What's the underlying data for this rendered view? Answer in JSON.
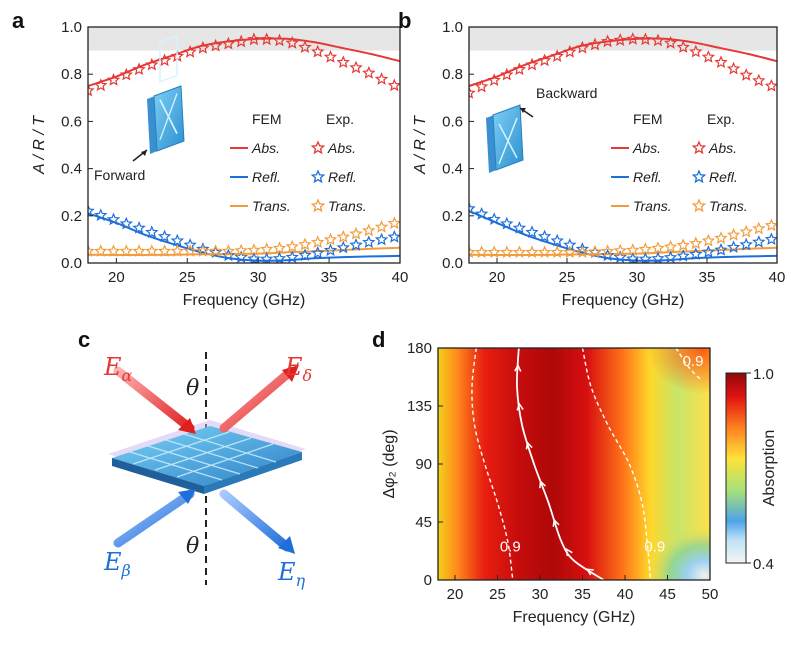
{
  "figure": {
    "panels": {
      "a": "a",
      "b": "b",
      "c": "c",
      "d": "d"
    }
  },
  "colors": {
    "abs": "#e53935",
    "refl": "#1e6fd9",
    "trans": "#f39c3c",
    "shade": "#e6e6e6"
  },
  "chart_data": [
    {
      "id": "a",
      "type": "line",
      "xlabel": "Frequency (GHz)",
      "ylabel": "A / R / T",
      "xlim": [
        18,
        40
      ],
      "ylim": [
        0,
        1.0
      ],
      "xticks": [
        20,
        25,
        30,
        35,
        40
      ],
      "yticks": [
        0.0,
        0.2,
        0.4,
        0.6,
        0.8,
        1.0
      ],
      "yticklabels": [
        "0.0",
        "0.2",
        "0.4",
        "0.6",
        "0.8",
        "1.0"
      ],
      "shaded_band": [
        0.9,
        1.0
      ],
      "inset_label": "Forward",
      "legend": {
        "fem_title": "FEM",
        "exp_title": "Exp.",
        "entries": [
          "Abs.",
          "Refl.",
          "Trans."
        ]
      },
      "x": [
        18,
        20,
        22,
        24,
        26,
        28,
        30,
        32,
        34,
        36,
        38,
        40
      ],
      "series": [
        {
          "name": "Abs.",
          "kind": "FEM",
          "values": [
            0.75,
            0.79,
            0.84,
            0.88,
            0.92,
            0.94,
            0.95,
            0.95,
            0.935,
            0.91,
            0.885,
            0.855
          ]
        },
        {
          "name": "Refl.",
          "kind": "FEM",
          "values": [
            0.21,
            0.17,
            0.12,
            0.08,
            0.045,
            0.02,
            0.01,
            0.012,
            0.02,
            0.025,
            0.028,
            0.03
          ]
        },
        {
          "name": "Trans.",
          "kind": "FEM",
          "values": [
            0.035,
            0.034,
            0.034,
            0.035,
            0.037,
            0.038,
            0.04,
            0.045,
            0.05,
            0.055,
            0.06,
            0.065
          ]
        },
        {
          "name": "Abs.",
          "kind": "Exp.",
          "values": [
            0.73,
            0.78,
            0.83,
            0.87,
            0.91,
            0.93,
            0.95,
            0.94,
            0.9,
            0.85,
            0.8,
            0.74
          ]
        },
        {
          "name": "Refl.",
          "kind": "Exp.",
          "values": [
            0.22,
            0.18,
            0.14,
            0.1,
            0.06,
            0.03,
            0.015,
            0.02,
            0.04,
            0.065,
            0.09,
            0.115
          ]
        },
        {
          "name": "Trans.",
          "kind": "Exp.",
          "values": [
            0.05,
            0.05,
            0.05,
            0.05,
            0.05,
            0.05,
            0.055,
            0.065,
            0.085,
            0.11,
            0.14,
            0.175
          ]
        }
      ]
    },
    {
      "id": "b",
      "type": "line",
      "xlabel": "Frequency (GHz)",
      "ylabel": "A / R / T",
      "xlim": [
        18,
        40
      ],
      "ylim": [
        0,
        1.0
      ],
      "xticks": [
        20,
        25,
        30,
        35,
        40
      ],
      "yticks": [
        0.0,
        0.2,
        0.4,
        0.6,
        0.8,
        1.0
      ],
      "yticklabels": [
        "0.0",
        "0.2",
        "0.4",
        "0.6",
        "0.8",
        "1.0"
      ],
      "shaded_band": [
        0.9,
        1.0
      ],
      "inset_label": "Backward",
      "legend": {
        "fem_title": "FEM",
        "exp_title": "Exp.",
        "entries": [
          "Abs.",
          "Refl.",
          "Trans."
        ]
      },
      "x": [
        18,
        20,
        22,
        24,
        26,
        28,
        30,
        32,
        34,
        36,
        38,
        40
      ],
      "series": [
        {
          "name": "Abs.",
          "kind": "FEM",
          "values": [
            0.75,
            0.79,
            0.84,
            0.88,
            0.92,
            0.94,
            0.95,
            0.95,
            0.935,
            0.91,
            0.885,
            0.855
          ]
        },
        {
          "name": "Refl.",
          "kind": "FEM",
          "values": [
            0.22,
            0.17,
            0.12,
            0.08,
            0.045,
            0.02,
            0.01,
            0.012,
            0.02,
            0.025,
            0.028,
            0.03
          ]
        },
        {
          "name": "Trans.",
          "kind": "FEM",
          "values": [
            0.035,
            0.034,
            0.034,
            0.035,
            0.037,
            0.038,
            0.04,
            0.045,
            0.05,
            0.055,
            0.06,
            0.065
          ]
        },
        {
          "name": "Abs.",
          "kind": "Exp.",
          "values": [
            0.72,
            0.78,
            0.83,
            0.87,
            0.91,
            0.94,
            0.95,
            0.94,
            0.9,
            0.85,
            0.79,
            0.74
          ]
        },
        {
          "name": "Refl.",
          "kind": "Exp.",
          "values": [
            0.23,
            0.18,
            0.14,
            0.1,
            0.06,
            0.03,
            0.015,
            0.02,
            0.035,
            0.055,
            0.08,
            0.105
          ]
        },
        {
          "name": "Trans.",
          "kind": "Exp.",
          "values": [
            0.045,
            0.045,
            0.045,
            0.045,
            0.045,
            0.05,
            0.055,
            0.065,
            0.08,
            0.105,
            0.135,
            0.165
          ]
        }
      ]
    },
    {
      "id": "d",
      "type": "heatmap",
      "xlabel": "Frequency (GHz)",
      "ylabel": "Δφ₂ (deg)",
      "xlim": [
        18,
        50
      ],
      "ylim": [
        0,
        180
      ],
      "xticks": [
        20,
        25,
        30,
        35,
        40,
        45,
        50
      ],
      "yticks": [
        0,
        45,
        90,
        135,
        180
      ],
      "colorbar": {
        "label": "Absorption",
        "min": 0.4,
        "max": 1.0,
        "ticklabels": [
          "0.4",
          "1.0"
        ]
      },
      "contour_level": 0.9,
      "contour_labels": [
        "0.9",
        "0.9",
        "0.9"
      ],
      "contours": [
        {
          "x": [
            22.5,
            22.0,
            22.3,
            23.5,
            25.0,
            26.2,
            26.8
          ],
          "y": [
            180,
            150,
            120,
            90,
            60,
            30,
            0
          ]
        },
        {
          "x": [
            35.0,
            36.0,
            38.0,
            40.5,
            42.0,
            42.6,
            43.0
          ],
          "y": [
            180,
            150,
            120,
            90,
            60,
            30,
            0
          ]
        },
        {
          "x": [
            46.0,
            47.5,
            49.0
          ],
          "y": [
            180,
            165,
            155
          ]
        }
      ],
      "trajectory": {
        "x": [
          27.5,
          27.3,
          27.9,
          29.3,
          31.0,
          32.5,
          34.0,
          37.5
        ],
        "y": [
          180,
          150,
          120,
          90,
          60,
          30,
          15,
          0
        ]
      }
    }
  ],
  "diagram_c": {
    "labels": {
      "incident_top": "E",
      "incident_top_sub": "α",
      "reflected_top": "E",
      "reflected_top_sub": "δ",
      "incident_bottom": "E",
      "incident_bottom_sub": "β",
      "reflected_bottom": "E",
      "reflected_bottom_sub": "η",
      "angle_top": "θ",
      "angle_bottom": "θ"
    }
  }
}
